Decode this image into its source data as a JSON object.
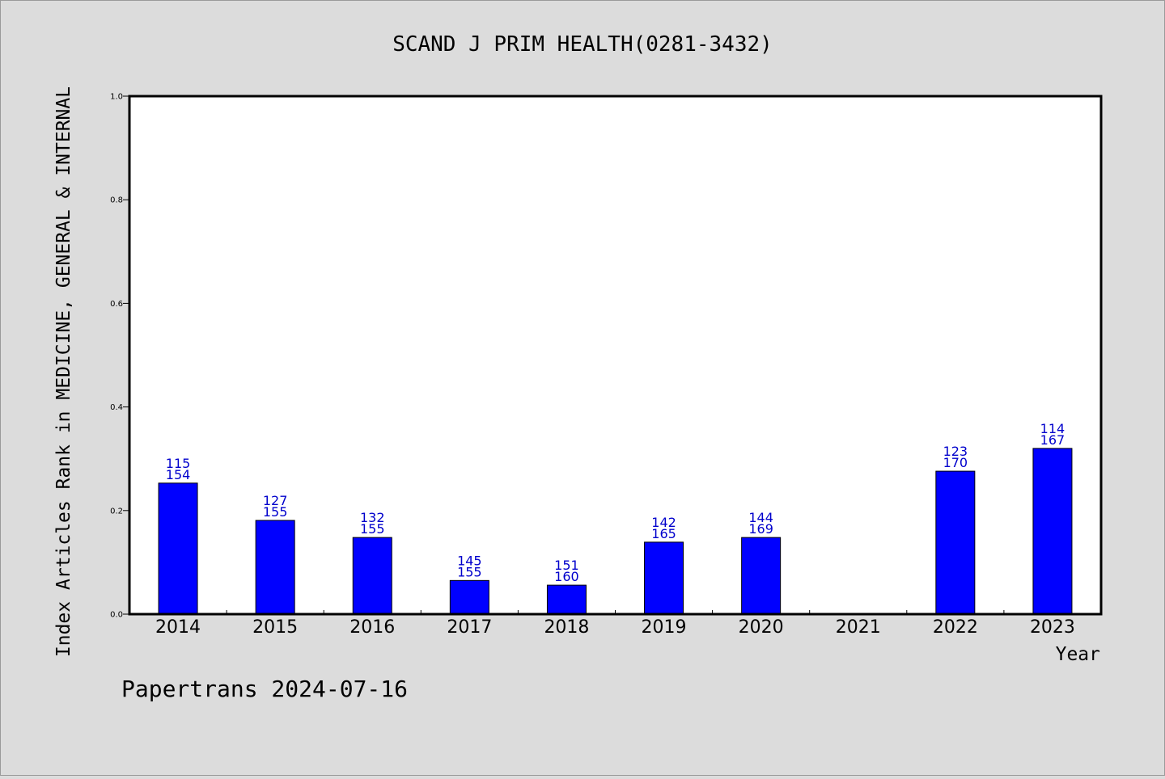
{
  "chart_data": {
    "type": "bar",
    "title": "SCAND J PRIM HEALTH(0281-3432)",
    "ylabel": "Index Articles Rank in MEDICINE, GENERAL & INTERNAL",
    "xlabel": "Year",
    "ylim": [
      0,
      1.0
    ],
    "yticks": [
      "0.0",
      "0.2",
      "0.4",
      "0.6",
      "0.8",
      "1.0"
    ],
    "categories": [
      "2014",
      "2015",
      "2016",
      "2017",
      "2018",
      "2019",
      "2020",
      "2021",
      "2022",
      "2023"
    ],
    "values": [
      0.253,
      0.181,
      0.148,
      0.065,
      0.056,
      0.139,
      0.148,
      null,
      0.276,
      0.32
    ],
    "rank_labels": [
      "115",
      "127",
      "132",
      "145",
      "151",
      "142",
      "144",
      "",
      "123",
      "114"
    ],
    "total_labels": [
      "154",
      "155",
      "155",
      "155",
      "160",
      "165",
      "169",
      "",
      "170",
      "167"
    ],
    "bar_color": "#0000ff",
    "label_color": "#0000cc",
    "grid": false,
    "legend": "none"
  },
  "footer": "Papertrans 2024-07-16"
}
